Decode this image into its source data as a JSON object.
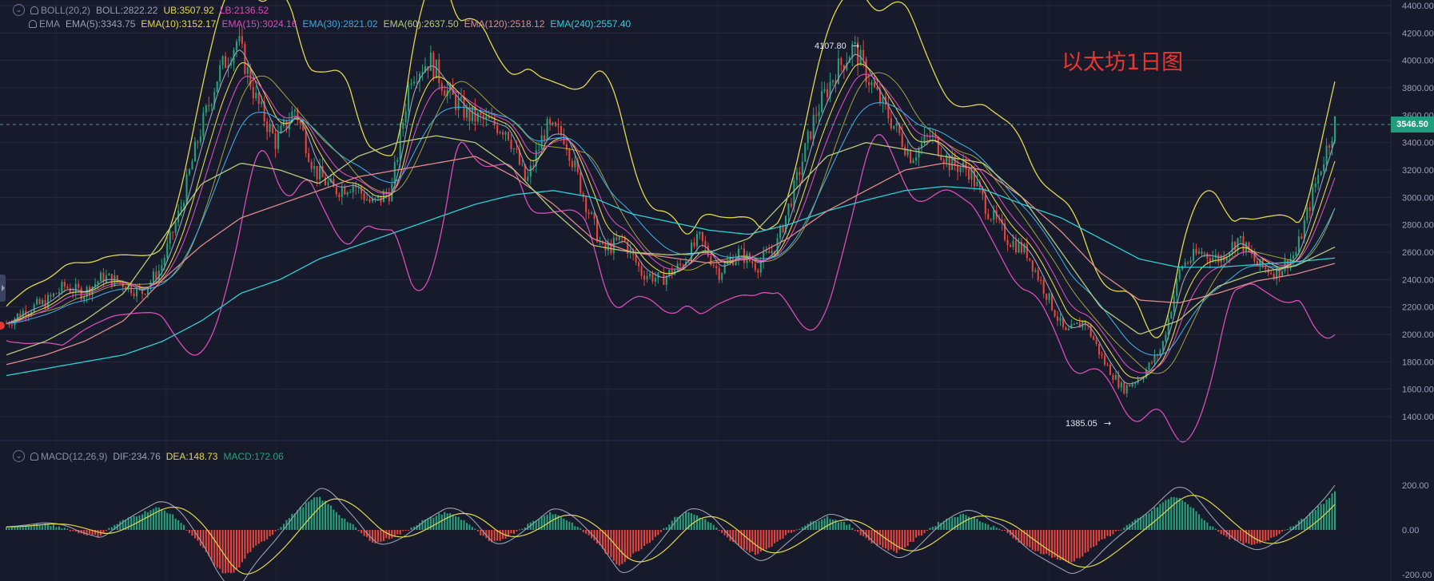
{
  "title": "以太坊1日图",
  "legends": {
    "boll": {
      "label": "BOLL(20,2)",
      "mid": "BOLL:2822.22",
      "ub": "UB:3507.92",
      "lb": "LB:2136.52"
    },
    "ema": {
      "label": "EMA",
      "items": [
        {
          "text": "EMA(5):3343.75",
          "color": "#9aa0b5"
        },
        {
          "text": "EMA(10):3152.17",
          "color": "#e3d84c"
        },
        {
          "text": "EMA(15):3024.16",
          "color": "#d94db8"
        },
        {
          "text": "EMA(30):2821.02",
          "color": "#3fa8dc"
        },
        {
          "text": "EMA(60):2637.50",
          "color": "#b8c97a"
        },
        {
          "text": "EMA(120):2518.12",
          "color": "#e08a8a"
        },
        {
          "text": "EMA(240):2557.40",
          "color": "#2fd0d6"
        }
      ]
    },
    "macd": {
      "label": "MACD(12,26,9)",
      "dif": "DIF:234.76",
      "dea": "DEA:148.73",
      "macd": "MACD:172.06"
    }
  },
  "price_tag": "3546.50",
  "annotations": {
    "high": "4107.80",
    "low": "1385.05"
  },
  "colors": {
    "up": "#26a17b",
    "down": "#e8453c",
    "ub": "#e3d84c",
    "lb": "#d94db8",
    "mid": "#e3d84c",
    "dif": "#9aa0b5",
    "dea": "#e3d84c",
    "background": "#161a2b",
    "grid": "#262b40"
  },
  "chart_data": [
    {
      "type": "candlestick",
      "title": "以太坊1日图",
      "yticks": [
        "4400.00",
        "4200.00",
        "4000.00",
        "3800.00",
        "3600.00",
        "3400.00",
        "3200.00",
        "3000.00",
        "2800.00",
        "2600.00",
        "2400.00",
        "2200.00",
        "2000.00",
        "1800.00",
        "1600.00",
        "1400.00"
      ],
      "ylim": [
        1350,
        4420
      ],
      "last_price": 3546.5,
      "high": 4107.8,
      "low": 1385.05,
      "close_path": [
        2080,
        2180,
        2230,
        2350,
        2300,
        2420,
        2380,
        2300,
        2480,
        2900,
        3450,
        3900,
        4150,
        3700,
        3400,
        3650,
        3200,
        3050,
        3100,
        2950,
        3050,
        3900,
        4000,
        3750,
        3600,
        3550,
        3500,
        3100,
        3500,
        3450,
        3000,
        2600,
        2700,
        2450,
        2400,
        2500,
        2700,
        2450,
        2600,
        2500,
        2650,
        3100,
        3600,
        3900,
        4100,
        3800,
        3550,
        3300,
        3450,
        3250,
        3200,
        2900,
        2700,
        2600,
        2300,
        2000,
        2100,
        1800,
        1600,
        1700,
        1900,
        2500,
        2600,
        2550,
        2700,
        2500,
        2450,
        2600,
        3100,
        3546.5
      ],
      "ema": [
        {
          "name": "EMA(240)",
          "color": "#2fd0d6",
          "values": [
            1700,
            1750,
            1800,
            1850,
            1950,
            2100,
            2300,
            2400,
            2550,
            2650,
            2750,
            2850,
            2950,
            3020,
            3050,
            3000,
            2880,
            2820,
            2760,
            2730,
            2800,
            2900,
            2980,
            3050,
            3080,
            3060,
            2950,
            2850,
            2700,
            2550,
            2490,
            2490,
            2510,
            2530,
            2557.4
          ]
        },
        {
          "name": "EMA(120)",
          "color": "#e08a8a",
          "values": [
            1780,
            1850,
            1950,
            2100,
            2400,
            2650,
            2850,
            2950,
            3050,
            3150,
            3200,
            3250,
            3300,
            3150,
            2950,
            2700,
            2600,
            2560,
            2520,
            2550,
            2700,
            2900,
            3050,
            3200,
            3250,
            3200,
            3000,
            2750,
            2450,
            2250,
            2230,
            2300,
            2390,
            2440,
            2518.12
          ]
        },
        {
          "name": "EMA(60)",
          "color": "#b8c97a",
          "values": [
            1850,
            1950,
            2100,
            2300,
            2700,
            3100,
            3250,
            3200,
            3100,
            3300,
            3400,
            3450,
            3400,
            3200,
            2900,
            2650,
            2600,
            2580,
            2600,
            2700,
            3000,
            3300,
            3400,
            3350,
            3300,
            3250,
            3000,
            2600,
            2200,
            2000,
            2100,
            2350,
            2450,
            2500,
            2637.5
          ]
        }
      ],
      "bollinger": {
        "ub": "UB",
        "lb": "LB",
        "mid": "BOLL"
      }
    },
    {
      "type": "bar",
      "title": "MACD(12,26,9)",
      "yticks": [
        "200.00",
        "0.00",
        "-200.00"
      ],
      "ylim": [
        -260,
        260
      ],
      "dif_last": 234.76,
      "dea_last": 148.73,
      "macd_last": 172.06,
      "histogram_path": [
        10,
        15,
        20,
        25,
        20,
        10,
        -10,
        -20,
        -30,
        10,
        40,
        60,
        80,
        100,
        80,
        40,
        -20,
        -80,
        -160,
        -200,
        -180,
        -100,
        -60,
        -20,
        30,
        80,
        120,
        150,
        110,
        60,
        20,
        -30,
        -60,
        -40,
        -20,
        10,
        40,
        60,
        80,
        60,
        30,
        -20,
        -60,
        -40,
        -10,
        20,
        50,
        80,
        60,
        30,
        -10,
        -50,
        -110,
        -160,
        -120,
        -80,
        -40,
        10,
        60,
        80,
        60,
        30,
        -20,
        -60,
        -90,
        -110,
        -80,
        -40,
        -10,
        20,
        40,
        60,
        40,
        20,
        -20,
        -60,
        -80,
        -100,
        -70,
        -30,
        10,
        40,
        60,
        70,
        50,
        20,
        10,
        -30,
        -70,
        -90,
        -110,
        -130,
        -150,
        -120,
        -80,
        -40,
        -10,
        20,
        50,
        80,
        120,
        150,
        130,
        80,
        30,
        -10,
        -40,
        -60,
        -70,
        -50,
        -20,
        10,
        40,
        80,
        120,
        172.06
      ]
    }
  ]
}
